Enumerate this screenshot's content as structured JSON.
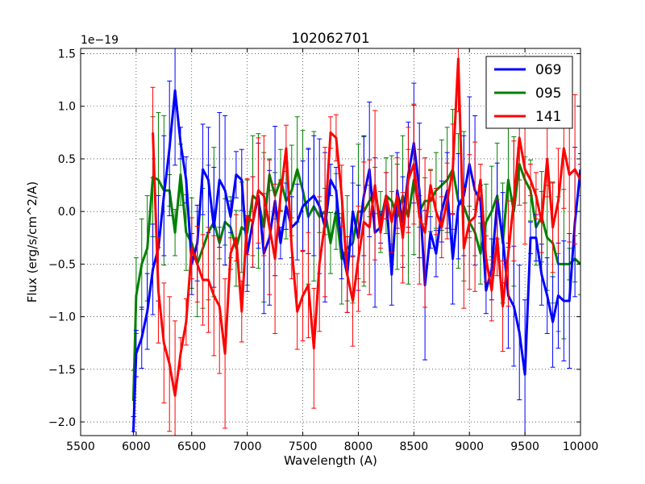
{
  "chart_data": {
    "type": "line",
    "title": "102062701",
    "xlabel": "Wavelength (A)",
    "ylabel": "Flux (erg/s/cm^2/A)",
    "offset_label": "1e−19",
    "xlim": [
      5500,
      10000
    ],
    "ylim": [
      -2.13,
      1.55
    ],
    "x_ticks": [
      5500,
      6000,
      6500,
      7000,
      7500,
      8000,
      8500,
      9000,
      9500,
      10000
    ],
    "x_tick_labels": [
      "5500",
      "6000",
      "6500",
      "7000",
      "7500",
      "8000",
      "8500",
      "9000",
      "9500",
      "10000"
    ],
    "y_ticks": [
      -2.0,
      -1.5,
      -1.0,
      -0.5,
      0.0,
      0.5,
      1.0,
      1.5
    ],
    "y_tick_labels": [
      "−2.0",
      "−1.5",
      "−1.0",
      "−0.5",
      "0.0",
      "0.5",
      "1.0",
      "1.5"
    ],
    "grid": true,
    "legend_position": "top-right",
    "series": [
      {
        "name": "069",
        "color": "#0000ff",
        "x": [
          5975,
          6000,
          6050,
          6100,
          6150,
          6200,
          6250,
          6300,
          6350,
          6400,
          6450,
          6500,
          6550,
          6600,
          6650,
          6700,
          6750,
          6800,
          6850,
          6900,
          6950,
          7000,
          7050,
          7100,
          7150,
          7200,
          7250,
          7300,
          7350,
          7400,
          7450,
          7500,
          7550,
          7600,
          7650,
          7700,
          7750,
          7800,
          7850,
          7900,
          7950,
          8000,
          8050,
          8100,
          8150,
          8200,
          8250,
          8300,
          8350,
          8400,
          8450,
          8500,
          8550,
          8600,
          8650,
          8700,
          8750,
          8800,
          8850,
          8900,
          8950,
          9000,
          9050,
          9100,
          9150,
          9200,
          9250,
          9300,
          9350,
          9400,
          9450,
          9500,
          9550,
          9600,
          9650,
          9700,
          9750,
          9800,
          9850,
          9900,
          9950,
          10000
        ],
        "values": [
          -2.1,
          -1.35,
          -1.2,
          -0.95,
          -0.55,
          -0.35,
          0.15,
          0.6,
          1.15,
          0.65,
          0.3,
          -0.5,
          -0.3,
          0.4,
          0.3,
          -0.15,
          0.3,
          0.2,
          -0.05,
          0.35,
          0.3,
          -0.4,
          -0.1,
          0.15,
          -0.4,
          -0.25,
          0.1,
          -0.3,
          0.05,
          -0.15,
          -0.1,
          0.05,
          0.1,
          0.15,
          0.05,
          -0.15,
          0.3,
          0.2,
          -0.35,
          -0.6,
          0.0,
          -0.25,
          0.15,
          0.4,
          -0.2,
          -0.15,
          0.15,
          -0.6,
          0.2,
          -0.1,
          0.35,
          0.65,
          0.2,
          -0.7,
          -0.2,
          -0.4,
          0.0,
          0.2,
          -0.45,
          0.05,
          0.15,
          0.45,
          0.2,
          0.1,
          -0.75,
          -0.55,
          0.1,
          -0.25,
          -0.8,
          -0.9,
          -1.15,
          -1.55,
          -0.25,
          -0.25,
          -0.6,
          -0.8,
          -1.05,
          -0.8,
          -0.85,
          -0.85,
          -0.1,
          0.4
        ]
      },
      {
        "name": "095",
        "color": "#008000",
        "x": [
          5975,
          6000,
          6050,
          6100,
          6150,
          6200,
          6250,
          6300,
          6350,
          6400,
          6450,
          6500,
          6550,
          6600,
          6650,
          6700,
          6750,
          6800,
          6850,
          6900,
          6950,
          7000,
          7050,
          7100,
          7150,
          7200,
          7250,
          7300,
          7350,
          7400,
          7450,
          7500,
          7550,
          7600,
          7650,
          7700,
          7750,
          7800,
          7850,
          7900,
          7950,
          8000,
          8050,
          8100,
          8150,
          8200,
          8250,
          8300,
          8350,
          8400,
          8450,
          8500,
          8550,
          8600,
          8650,
          8700,
          8750,
          8800,
          8850,
          8900,
          8950,
          9000,
          9050,
          9100,
          9150,
          9200,
          9250,
          9300,
          9350,
          9400,
          9450,
          9500,
          9550,
          9600,
          9650,
          9700,
          9750,
          9800,
          9850,
          9900,
          9950,
          10000
        ],
        "values": [
          -1.8,
          -0.8,
          -0.5,
          -0.35,
          0.33,
          0.3,
          0.2,
          0.2,
          -0.2,
          0.35,
          -0.2,
          -0.3,
          -0.5,
          -0.35,
          -0.2,
          -0.1,
          -0.3,
          -0.1,
          -0.15,
          -0.35,
          -0.15,
          -0.2,
          0.15,
          0.1,
          -0.15,
          0.35,
          0.15,
          0.3,
          0.1,
          0.2,
          0.4,
          0.2,
          -0.05,
          0.05,
          -0.05,
          0.0,
          -0.3,
          0.0,
          -0.45,
          -0.35,
          -0.3,
          0.0,
          0.0,
          0.1,
          0.2,
          -0.1,
          0.15,
          0.1,
          -0.05,
          0.15,
          -0.05,
          0.3,
          0.0,
          0.1,
          0.1,
          0.2,
          0.25,
          0.3,
          0.4,
          0.1,
          0.05,
          -0.1,
          -0.2,
          -0.4,
          -0.1,
          0.0,
          0.15,
          -0.3,
          0.3,
          0.0,
          0.45,
          0.3,
          0.2,
          -0.15,
          -0.05,
          -0.25,
          -0.3,
          -0.5,
          -0.5,
          -0.5,
          -0.45,
          -0.5
        ]
      },
      {
        "name": "141",
        "color": "#ff0000",
        "x": [
          6150,
          6200,
          6250,
          6300,
          6350,
          6400,
          6450,
          6500,
          6550,
          6600,
          6650,
          6700,
          6750,
          6800,
          6850,
          6900,
          6950,
          7000,
          7050,
          7100,
          7150,
          7200,
          7250,
          7300,
          7350,
          7400,
          7450,
          7500,
          7550,
          7600,
          7650,
          7700,
          7750,
          7800,
          7850,
          7900,
          7950,
          8000,
          8050,
          8100,
          8150,
          8200,
          8250,
          8300,
          8350,
          8400,
          8450,
          8500,
          8550,
          8600,
          8650,
          8700,
          8750,
          8800,
          8850,
          8900,
          8950,
          9000,
          9050,
          9100,
          9150,
          9200,
          9250,
          9300,
          9350,
          9400,
          9450,
          9500,
          9550,
          9600,
          9650,
          9700,
          9750,
          9800,
          9850,
          9900,
          9950,
          10000
        ],
        "values": [
          0.75,
          -0.75,
          -1.25,
          -1.45,
          -1.75,
          -1.35,
          -1.05,
          -0.35,
          -0.5,
          -0.65,
          -0.65,
          -0.8,
          -0.9,
          -1.35,
          -0.4,
          -0.25,
          -0.95,
          -0.05,
          -0.1,
          0.2,
          0.15,
          -0.15,
          -0.45,
          0.15,
          0.6,
          -0.35,
          -0.95,
          -0.8,
          -0.7,
          -1.3,
          -0.5,
          -0.1,
          0.75,
          0.7,
          0.15,
          -0.6,
          -0.85,
          -0.45,
          -0.1,
          -0.15,
          0.25,
          -0.2,
          0.15,
          -0.1,
          0.15,
          -0.25,
          0.3,
          0.45,
          -0.05,
          -0.2,
          0.25,
          0.0,
          -0.15,
          0.1,
          0.4,
          1.45,
          -0.35,
          -0.1,
          -0.05,
          0.3,
          -0.45,
          -0.75,
          -0.25,
          -0.9,
          -0.4,
          0.1,
          0.7,
          0.4,
          0.3,
          0.15,
          -0.1,
          0.5,
          -0.15,
          0.1,
          0.6,
          0.35,
          0.4,
          0.3
        ]
      }
    ],
    "legend": [
      "069",
      "095",
      "141"
    ]
  }
}
